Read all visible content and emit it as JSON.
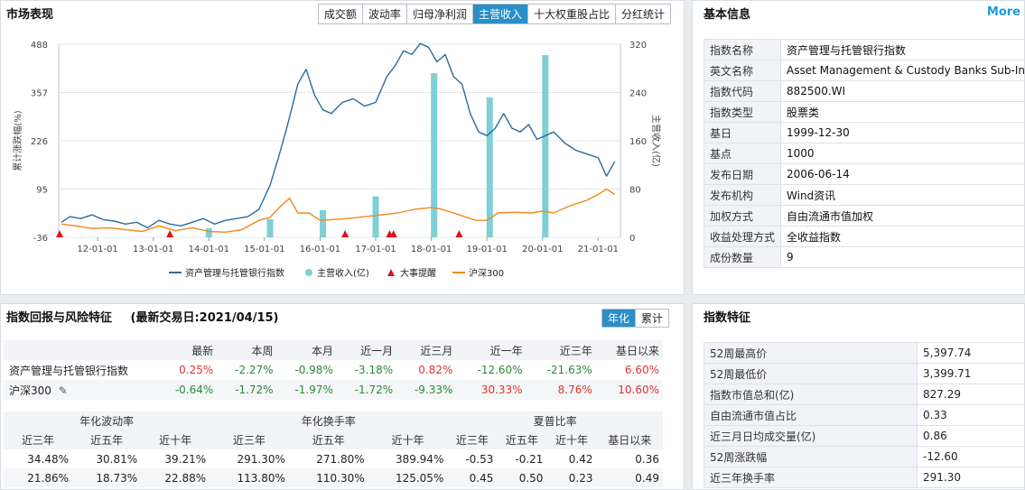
{
  "market": {
    "title": "市场表现",
    "tabs": [
      "成交额",
      "波动率",
      "归母净利润",
      "主营收入",
      "十大权重股占比",
      "分红统计"
    ],
    "active_tab": 3
  },
  "chart_data": {
    "type": "line",
    "left_axis_label": "累计涨跌幅(%)",
    "right_axis_label": "主营收入(亿)",
    "left_ticks": [
      "488",
      "357",
      "226",
      "95",
      "-36"
    ],
    "right_ticks": [
      "320",
      "240",
      "160",
      "80",
      "0"
    ],
    "ylim_left": [
      -36,
      488
    ],
    "ylim_right": [
      0,
      320
    ],
    "x_ticks": [
      "12-01-01",
      "13-01-01",
      "14-01-01",
      "15-01-01",
      "16-01-01",
      "17-01-01",
      "18-01-01",
      "19-01-01",
      "20-01-01",
      "21-01-01"
    ],
    "xlim": [
      2011.3,
      2021.4
    ],
    "legend": [
      "资产管理与托管银行指数",
      "主营收入(亿)",
      "大事提醒",
      "沪深300"
    ],
    "colors": {
      "index": "#2b6c9c",
      "revenue": "#7fcfd6",
      "event": "#e0101a",
      "hs300": "#f08a1e"
    },
    "series": [
      {
        "name": "资产管理与托管银行指数",
        "x": [
          2011.35,
          2011.5,
          2011.7,
          2011.9,
          2012.1,
          2012.3,
          2012.5,
          2012.7,
          2012.9,
          2013.1,
          2013.3,
          2013.5,
          2013.7,
          2013.9,
          2014.1,
          2014.3,
          2014.5,
          2014.7,
          2014.9,
          2015.1,
          2015.25,
          2015.4,
          2015.5,
          2015.6,
          2015.75,
          2015.9,
          2016.05,
          2016.2,
          2016.4,
          2016.6,
          2016.8,
          2017.0,
          2017.2,
          2017.35,
          2017.5,
          2017.65,
          2017.8,
          2017.95,
          2018.1,
          2018.25,
          2018.4,
          2018.55,
          2018.7,
          2018.85,
          2019.0,
          2019.15,
          2019.3,
          2019.45,
          2019.6,
          2019.75,
          2019.9,
          2020.05,
          2020.2,
          2020.4,
          2020.6,
          2020.8,
          2021.0,
          2021.15,
          2021.3
        ],
        "values": [
          5,
          20,
          15,
          25,
          12,
          8,
          0,
          5,
          -10,
          10,
          0,
          -5,
          5,
          15,
          0,
          10,
          15,
          20,
          40,
          105,
          180,
          260,
          320,
          380,
          420,
          350,
          310,
          300,
          330,
          340,
          320,
          330,
          400,
          430,
          470,
          460,
          490,
          480,
          440,
          460,
          400,
          380,
          300,
          250,
          240,
          260,
          300,
          260,
          250,
          270,
          230,
          240,
          250,
          220,
          200,
          190,
          180,
          130,
          170
        ]
      },
      {
        "name": "沪深300",
        "x": [
          2011.35,
          2011.6,
          2011.9,
          2012.2,
          2012.5,
          2012.8,
          2013.1,
          2013.4,
          2013.7,
          2014.0,
          2014.3,
          2014.6,
          2014.9,
          2015.1,
          2015.3,
          2015.45,
          2015.6,
          2015.8,
          2016.0,
          2016.2,
          2016.5,
          2016.8,
          2017.1,
          2017.4,
          2017.7,
          2018.0,
          2018.2,
          2018.5,
          2018.8,
          2019.0,
          2019.2,
          2019.5,
          2019.8,
          2020.0,
          2020.2,
          2020.5,
          2020.8,
          2021.0,
          2021.15,
          2021.3
        ],
        "values": [
          0,
          -5,
          -12,
          -10,
          -15,
          -20,
          -5,
          -18,
          -10,
          -20,
          -22,
          -15,
          10,
          18,
          50,
          70,
          30,
          30,
          10,
          12,
          15,
          20,
          25,
          30,
          40,
          45,
          40,
          25,
          10,
          10,
          30,
          32,
          30,
          35,
          30,
          50,
          65,
          80,
          95,
          80
        ]
      },
      {
        "name": "主营收入(亿)",
        "type": "bar",
        "x": [
          2014.0,
          2015.1,
          2016.05,
          2017.0,
          2018.05,
          2019.05,
          2020.05
        ],
        "values": [
          15,
          30,
          45,
          68,
          272,
          232,
          302
        ]
      }
    ],
    "events_x": [
      2011.3,
      2013.3,
      2016.45,
      2017.25,
      2017.32,
      2018.5
    ]
  },
  "basic": {
    "title": "基本信息",
    "more": "More",
    "rows": [
      {
        "k": "指数名称",
        "v": "资产管理与托管银行指数"
      },
      {
        "k": "英文名称",
        "v": "Asset Management & Custody Banks Sub-Ind"
      },
      {
        "k": "指数代码",
        "v": "882500.WI"
      },
      {
        "k": "指数类型",
        "v": "股票类"
      },
      {
        "k": "基日",
        "v": "1999-12-30"
      },
      {
        "k": "基点",
        "v": "1000"
      },
      {
        "k": "发布日期",
        "v": "2006-06-14"
      },
      {
        "k": "发布机构",
        "v": "Wind资讯"
      },
      {
        "k": "加权方式",
        "v": "自由流通市值加权"
      },
      {
        "k": "收益处理方式",
        "v": "全收益指数"
      },
      {
        "k": "成份数量",
        "v": "9"
      }
    ]
  },
  "returns": {
    "title": "指数回报与风险特征",
    "trade_date": "(最新交易日:2021/04/15)",
    "toggle": [
      "年化",
      "累计"
    ],
    "headers": [
      "",
      "最新",
      "本周",
      "本月",
      "近一月",
      "近三月",
      "近一年",
      "近三年",
      "基日以来"
    ],
    "rows": [
      {
        "name": "资产管理与托管银行指数",
        "values": [
          "0.25%",
          "-2.27%",
          "-0.98%",
          "-3.18%",
          "0.82%",
          "-12.60%",
          "-21.63%",
          "6.60%"
        ]
      },
      {
        "name": "沪深300",
        "values": [
          "-0.64%",
          "-1.72%",
          "-1.97%",
          "-1.72%",
          "-9.33%",
          "30.33%",
          "8.76%",
          "10.60%"
        ]
      }
    ],
    "risk_groups": [
      "年化波动率",
      "年化换手率",
      "夏普比率"
    ],
    "risk_headers": [
      "近三年",
      "近五年",
      "近十年",
      "近三年",
      "近五年",
      "近十年",
      "近三年",
      "近五年",
      "近十年",
      "基日以来"
    ],
    "risk_rows": [
      [
        "34.48%",
        "30.81%",
        "39.21%",
        "291.30%",
        "271.80%",
        "389.94%",
        "-0.53",
        "-0.21",
        "0.42",
        "0.36"
      ],
      [
        "21.86%",
        "18.73%",
        "22.88%",
        "113.80%",
        "110.30%",
        "125.05%",
        "0.45",
        "0.50",
        "0.23",
        "0.49"
      ]
    ]
  },
  "features": {
    "title": "指数特征",
    "rows": [
      {
        "k": "52周最高价",
        "v": "5,397.74"
      },
      {
        "k": "52周最低价",
        "v": "3,399.71"
      },
      {
        "k": "指数市值总和(亿)",
        "v": "827.29"
      },
      {
        "k": "自由流通市值占比",
        "v": "0.33"
      },
      {
        "k": "近三月日均成交量(亿)",
        "v": "0.86"
      },
      {
        "k": "52周涨跌幅",
        "v": "-12.60"
      },
      {
        "k": "近三年换手率",
        "v": "291.30"
      }
    ]
  }
}
